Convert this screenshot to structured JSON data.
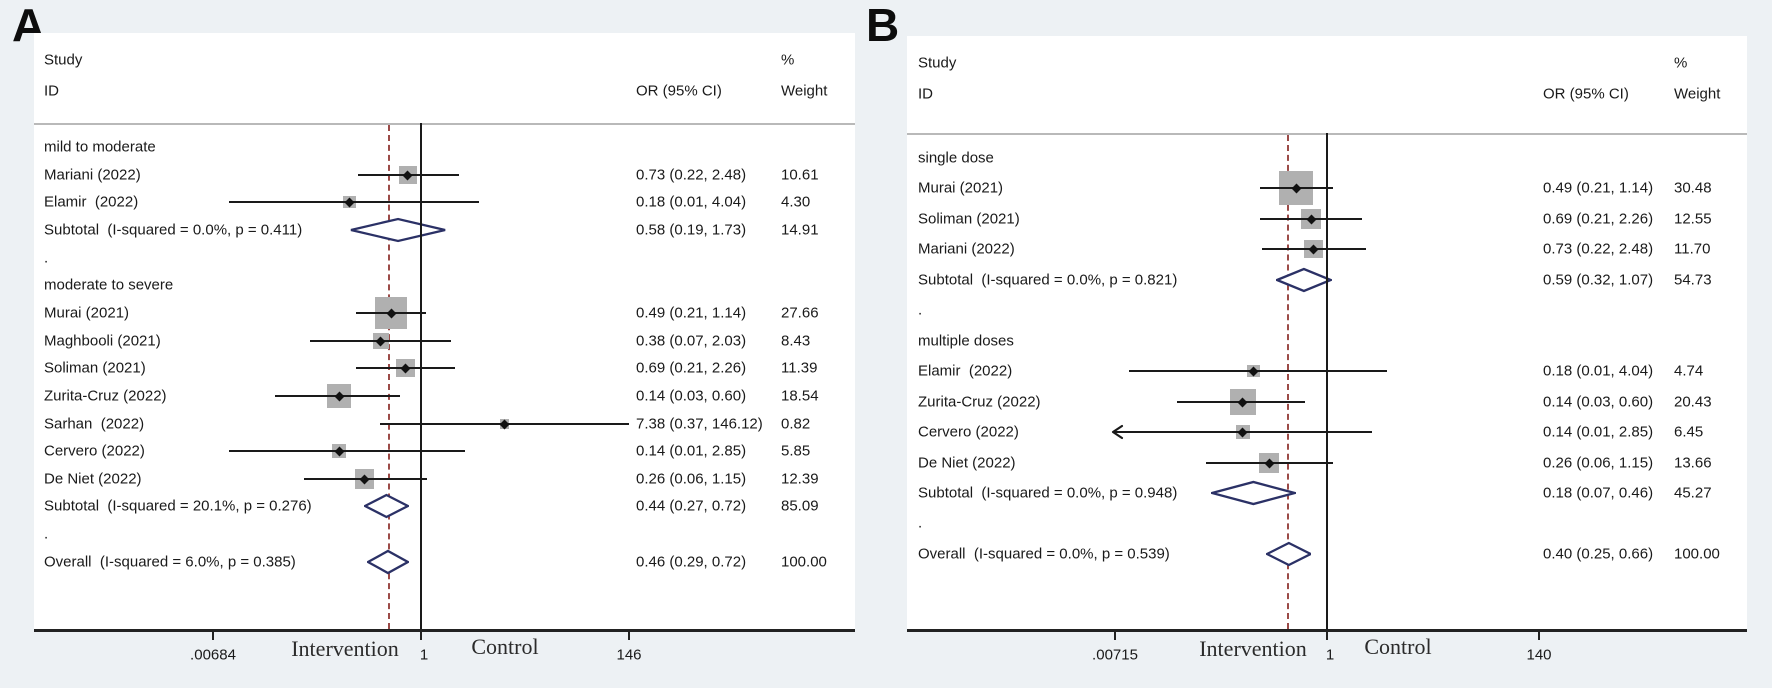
{
  "colors": {
    "background": "#edf1f4",
    "card": "#ffffff",
    "text": "#1a1a1a",
    "axis_line": "#222222",
    "separator": "#b9b9b9",
    "null_line": "#1a1a1a",
    "dashed_overall_line": "#9b4a47",
    "ci_line": "#1a1a1a",
    "weight_square": "#b0b0b0",
    "diamond_outline": "#2b3166",
    "diamond_fill": "#ffffff"
  },
  "chart_data": [
    {
      "type": "scatter",
      "variant": "forest-plot",
      "panel_label": "A",
      "columns": {
        "study": "Study",
        "id": "ID",
        "or": "OR (95% CI)",
        "pct": "%",
        "weight": "Weight"
      },
      "axis": {
        "scale": "log",
        "min": 0.00684,
        "null": 1,
        "max": 146,
        "min_label": ".00684",
        "null_label": "1",
        "max_label": "146",
        "left_region_label": "Intervention",
        "right_region_label": "Control"
      },
      "overall_or": 0.46,
      "rows": [
        {
          "kind": "group",
          "label": "mild to moderate"
        },
        {
          "kind": "study",
          "label": "Mariani (2022)",
          "or": 0.73,
          "lo": 0.22,
          "hi": 2.48,
          "or_ci": "0.73 (0.22, 2.48)",
          "weight_pct": 10.61,
          "weight": "10.61"
        },
        {
          "kind": "study",
          "label": "Elamir  (2022)",
          "or": 0.18,
          "lo": 0.01,
          "hi": 4.04,
          "or_ci": "0.18 (0.01, 4.04)",
          "weight_pct": 4.3,
          "weight": "4.30"
        },
        {
          "kind": "subtotal",
          "label": "Subtotal  (I-squared = 0.0%, p = 0.411)",
          "or": 0.58,
          "lo": 0.19,
          "hi": 1.73,
          "or_ci": "0.58 (0.19, 1.73)",
          "weight": "14.91"
        },
        {
          "kind": "spacer",
          "label": "."
        },
        {
          "kind": "group",
          "label": "moderate to severe"
        },
        {
          "kind": "study",
          "label": "Murai (2021)",
          "or": 0.49,
          "lo": 0.21,
          "hi": 1.14,
          "or_ci": "0.49 (0.21, 1.14)",
          "weight_pct": 27.66,
          "weight": "27.66"
        },
        {
          "kind": "study",
          "label": "Maghbooli (2021)",
          "or": 0.38,
          "lo": 0.07,
          "hi": 2.03,
          "or_ci": "0.38 (0.07, 2.03)",
          "weight_pct": 8.43,
          "weight": "8.43"
        },
        {
          "kind": "study",
          "label": "Soliman (2021)",
          "or": 0.69,
          "lo": 0.21,
          "hi": 2.26,
          "or_ci": "0.69 (0.21, 2.26)",
          "weight_pct": 11.39,
          "weight": "11.39"
        },
        {
          "kind": "study",
          "label": "Zurita-Cruz (2022)",
          "or": 0.14,
          "lo": 0.03,
          "hi": 0.6,
          "or_ci": "0.14 (0.03, 0.60)",
          "weight_pct": 18.54,
          "weight": "18.54"
        },
        {
          "kind": "study",
          "label": "Sarhan  (2022)",
          "or": 7.38,
          "lo": 0.37,
          "hi": 146.12,
          "or_ci": "7.38 (0.37, 146.12)",
          "weight_pct": 0.82,
          "weight": "0.82"
        },
        {
          "kind": "study",
          "label": "Cervero (2022)",
          "or": 0.14,
          "lo": 0.01,
          "hi": 2.85,
          "or_ci": "0.14 (0.01, 2.85)",
          "weight_pct": 5.85,
          "weight": "5.85"
        },
        {
          "kind": "study",
          "label": "De Niet (2022)",
          "or": 0.26,
          "lo": 0.06,
          "hi": 1.15,
          "or_ci": "0.26 (0.06, 1.15)",
          "weight_pct": 12.39,
          "weight": "12.39"
        },
        {
          "kind": "subtotal",
          "label": "Subtotal  (I-squared = 20.1%, p = 0.276)",
          "or": 0.44,
          "lo": 0.27,
          "hi": 0.72,
          "or_ci": "0.44 (0.27, 0.72)",
          "weight": "85.09"
        },
        {
          "kind": "spacer",
          "label": "."
        },
        {
          "kind": "overall",
          "label": "Overall  (I-squared = 6.0%, p = 0.385)",
          "or": 0.46,
          "lo": 0.29,
          "hi": 0.72,
          "or_ci": "0.46 (0.29, 0.72)",
          "weight": "100.00"
        }
      ]
    },
    {
      "type": "scatter",
      "variant": "forest-plot",
      "panel_label": "B",
      "columns": {
        "study": "Study",
        "id": "ID",
        "or": "OR (95% CI)",
        "pct": "%",
        "weight": "Weight"
      },
      "axis": {
        "scale": "log",
        "min": 0.00715,
        "null": 1,
        "max": 140,
        "min_label": ".00715",
        "null_label": "1",
        "max_label": "140",
        "left_region_label": "Intervention",
        "right_region_label": "Control"
      },
      "overall_or": 0.4,
      "rows": [
        {
          "kind": "group",
          "label": "single dose"
        },
        {
          "kind": "study",
          "label": "Murai (2021)",
          "or": 0.49,
          "lo": 0.21,
          "hi": 1.14,
          "or_ci": "0.49 (0.21, 1.14)",
          "weight_pct": 30.48,
          "weight": "30.48"
        },
        {
          "kind": "study",
          "label": "Soliman (2021)",
          "or": 0.69,
          "lo": 0.21,
          "hi": 2.26,
          "or_ci": "0.69 (0.21, 2.26)",
          "weight_pct": 12.55,
          "weight": "12.55"
        },
        {
          "kind": "study",
          "label": "Mariani (2022)",
          "or": 0.73,
          "lo": 0.22,
          "hi": 2.48,
          "or_ci": "0.73 (0.22, 2.48)",
          "weight_pct": 11.7,
          "weight": "11.70"
        },
        {
          "kind": "subtotal",
          "label": "Subtotal  (I-squared = 0.0%, p = 0.821)",
          "or": 0.59,
          "lo": 0.32,
          "hi": 1.07,
          "or_ci": "0.59 (0.32, 1.07)",
          "weight": "54.73"
        },
        {
          "kind": "spacer",
          "label": "."
        },
        {
          "kind": "group",
          "label": "multiple doses"
        },
        {
          "kind": "study",
          "label": "Elamir  (2022)",
          "or": 0.18,
          "lo": 0.01,
          "hi": 4.04,
          "or_ci": "0.18 (0.01, 4.04)",
          "weight_pct": 4.74,
          "weight": "4.74"
        },
        {
          "kind": "study",
          "label": "Zurita-Cruz (2022)",
          "or": 0.14,
          "lo": 0.03,
          "hi": 0.6,
          "or_ci": "0.14 (0.03, 0.60)",
          "weight_pct": 20.43,
          "weight": "20.43"
        },
        {
          "kind": "study",
          "label": "Cervero (2022)",
          "or": 0.14,
          "lo": 0.01,
          "hi": 2.85,
          "or_ci": "0.14 (0.01, 2.85)",
          "weight_pct": 6.45,
          "weight": "6.45",
          "arrow_lo": true
        },
        {
          "kind": "study",
          "label": "De Niet (2022)",
          "or": 0.26,
          "lo": 0.06,
          "hi": 1.15,
          "or_ci": "0.26 (0.06, 1.15)",
          "weight_pct": 13.66,
          "weight": "13.66"
        },
        {
          "kind": "subtotal",
          "label": "Subtotal  (I-squared = 0.0%, p = 0.948)",
          "or": 0.18,
          "lo": 0.07,
          "hi": 0.46,
          "or_ci": "0.18 (0.07, 0.46)",
          "weight": "45.27"
        },
        {
          "kind": "spacer",
          "label": "."
        },
        {
          "kind": "overall",
          "label": "Overall  (I-squared = 0.0%, p = 0.539)",
          "or": 0.4,
          "lo": 0.25,
          "hi": 0.66,
          "or_ci": "0.40 (0.25, 0.66)",
          "weight": "100.00"
        }
      ]
    }
  ]
}
